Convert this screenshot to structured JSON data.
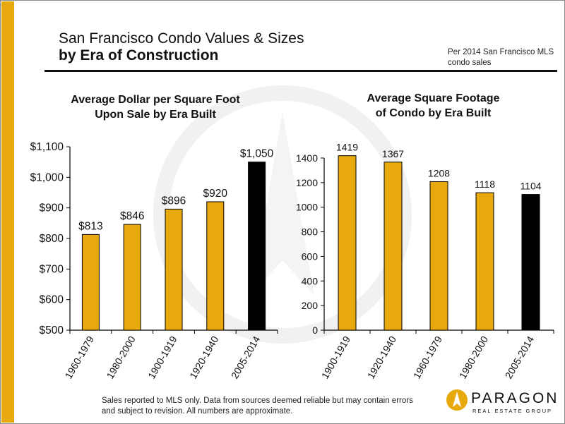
{
  "header": {
    "title_line1": "San Francisco Condo Values & Sizes",
    "title_line2": "by Era of Construction",
    "source_note": "Per 2014 San Francisco MLS condo sales"
  },
  "footer": {
    "disclaimer": "Sales reported to MLS only. Data from sources deemed reliable but may contain errors and subject to revision. All numbers are approximate."
  },
  "logo": {
    "name": "PARAGON",
    "subtitle": "REAL ESTATE GROUP"
  },
  "colors": {
    "accent": "#e8a90e",
    "bar_default": "#e8a90e",
    "bar_highlight": "#000000"
  },
  "chart_data": [
    {
      "type": "bar",
      "title": "Average Dollar per Square Foot Upon Sale by Era Built",
      "title_line1": "Average Dollar per Square Foot",
      "title_line2": "Upon Sale by Era Built",
      "categories": [
        "1960-1979",
        "1980-2000",
        "1900-1919",
        "1920-1940",
        "2005-2014"
      ],
      "values": [
        813,
        846,
        896,
        920,
        1050
      ],
      "data_labels": [
        "$813",
        "$846",
        "$896",
        "$920",
        "$1,050"
      ],
      "highlight_index": 4,
      "ylim": [
        500,
        1100
      ],
      "yticks": [
        500,
        600,
        700,
        800,
        900,
        1000,
        1100
      ],
      "ytick_labels": [
        "$500",
        "$600",
        "$700",
        "$800",
        "$900",
        "$1,000",
        "$1,100"
      ],
      "xlabel": "",
      "ylabel": "",
      "grid": false
    },
    {
      "type": "bar",
      "title": "Average Square Footage of Condo by Era Built",
      "title_line1": "Average Square Footage",
      "title_line2": "of Condo by Era Built",
      "categories": [
        "1900-1919",
        "1920-1940",
        "1960-1979",
        "1980-2000",
        "2005-2014"
      ],
      "values": [
        1419,
        1367,
        1208,
        1118,
        1104
      ],
      "data_labels": [
        "1419",
        "1367",
        "1208",
        "1118",
        "1104"
      ],
      "highlight_index": 4,
      "ylim": [
        0,
        1400
      ],
      "yticks": [
        0,
        200,
        400,
        600,
        800,
        1000,
        1200,
        1400
      ],
      "ytick_labels": [
        "0",
        "200",
        "400",
        "600",
        "800",
        "1000",
        "1200",
        "1400"
      ],
      "xlabel": "",
      "ylabel": "",
      "grid": false
    }
  ]
}
